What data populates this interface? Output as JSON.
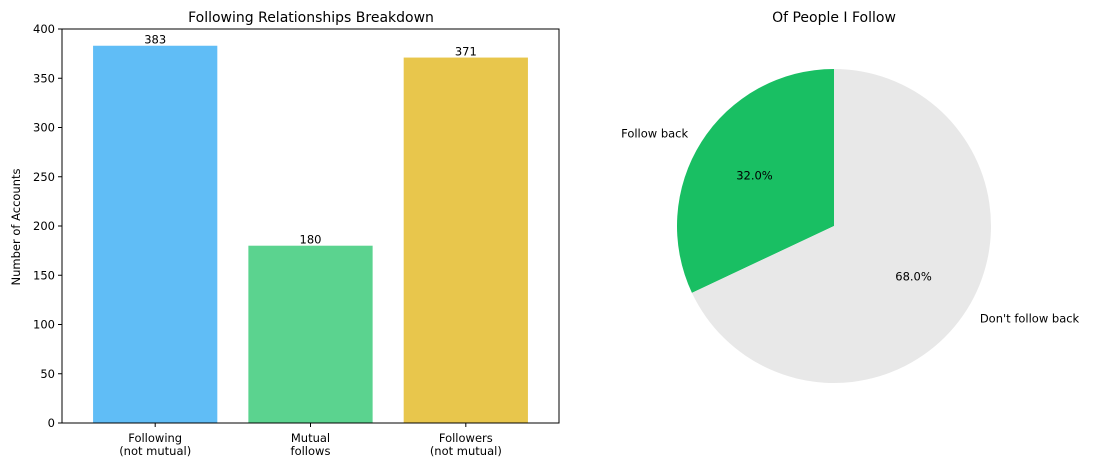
{
  "chart_data": [
    {
      "type": "bar",
      "title": "Following Relationships Breakdown",
      "xlabel": "",
      "ylabel": "Number of Accounts",
      "ylim": [
        0,
        400
      ],
      "yticks": [
        0,
        50,
        100,
        150,
        200,
        250,
        300,
        350,
        400
      ],
      "categories": [
        [
          "Following",
          "(not mutual)"
        ],
        [
          "Mutual",
          "follows"
        ],
        [
          "Followers",
          "(not mutual)"
        ]
      ],
      "values": [
        383,
        180,
        371
      ],
      "colors": [
        "#60bdf6",
        "#5bd38f",
        "#e8c64c"
      ],
      "grid": false
    },
    {
      "type": "pie",
      "title": "Of People I Follow",
      "labels": [
        "Follow back",
        "Don't follow back"
      ],
      "percent_labels": [
        "32.0%",
        "68.0%"
      ],
      "values": [
        32.0,
        68.0
      ],
      "colors": [
        "#19bf63",
        "#e8e8e8"
      ],
      "startangle": 90,
      "counterclock": true
    }
  ]
}
